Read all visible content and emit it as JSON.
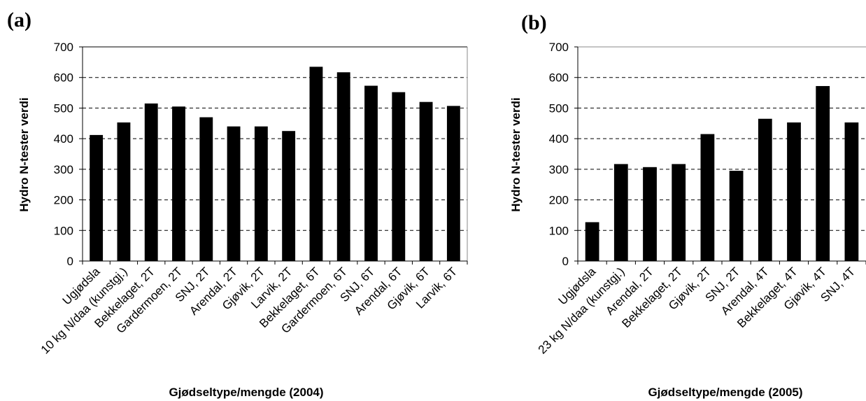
{
  "chart_data": [
    {
      "panel_label": "(a)",
      "type": "bar",
      "title": "",
      "xlabel": "Gjødseltype/mengde (2004)",
      "ylabel": "Hydro N-tester verdi",
      "ylim": [
        0,
        700
      ],
      "yticks": [
        "0",
        "100",
        "200",
        "300",
        "400",
        "500",
        "600",
        "700"
      ],
      "grid": "horizontal dashed",
      "categories": [
        "Ugjødsla",
        "10 kg N/daa (kunstgj.)",
        "Bekkelaget, 2T",
        "Gardermoen, 2T",
        "SNJ, 2T",
        "Arendal, 2T",
        "Gjøvik, 2T",
        "Larvik, 2T",
        "Bekkelaget, 6T",
        "Gardermoen, 6T",
        "SNJ, 6T",
        "Arendal, 6T",
        "Gjøvik, 6T",
        "Larvik, 6T"
      ],
      "values": [
        412,
        453,
        515,
        505,
        470,
        440,
        440,
        425,
        635,
        617,
        573,
        552,
        520,
        507
      ],
      "bar_color": "#000000"
    },
    {
      "panel_label": "(b)",
      "type": "bar",
      "title": "",
      "xlabel": "Gjødseltype/mengde (2005)",
      "ylabel": "Hydro N-tester verdi",
      "ylim": [
        0,
        700
      ],
      "yticks": [
        "0",
        "100",
        "200",
        "300",
        "400",
        "500",
        "600",
        "700"
      ],
      "grid": "horizontal dashed",
      "categories": [
        "Ugjødsla",
        "23 kg N/daa (kunstgj.)",
        "Arendal, 2T",
        "Bekkelaget, 2T",
        "Gjøvik, 2T",
        "SNJ, 2T",
        "Arendal, 4T",
        "Bekkelaget, 4T",
        "Gjøvik, 4T",
        "SNJ, 4T"
      ],
      "values": [
        127,
        317,
        307,
        317,
        415,
        295,
        465,
        453,
        572,
        453
      ],
      "bar_color": "#000000"
    }
  ]
}
